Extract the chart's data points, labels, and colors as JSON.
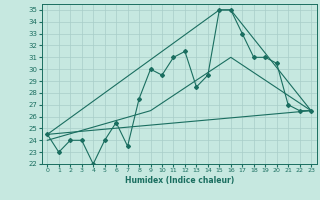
{
  "xlabel": "Humidex (Indice chaleur)",
  "background_color": "#c6e8e0",
  "grid_color": "#a8cec8",
  "line_color": "#1a6e60",
  "xlim": [
    -0.5,
    23.5
  ],
  "ylim": [
    22,
    35.5
  ],
  "xticks": [
    0,
    1,
    2,
    3,
    4,
    5,
    6,
    7,
    8,
    9,
    10,
    11,
    12,
    13,
    14,
    15,
    16,
    17,
    18,
    19,
    20,
    21,
    22,
    23
  ],
  "yticks": [
    22,
    23,
    24,
    25,
    26,
    27,
    28,
    29,
    30,
    31,
    32,
    33,
    34,
    35
  ],
  "series1": {
    "x": [
      0,
      1,
      2,
      3,
      4,
      5,
      6,
      7,
      8,
      9,
      10,
      11,
      12,
      13,
      14,
      15,
      16,
      17,
      18,
      19,
      20,
      21,
      22,
      23
    ],
    "y": [
      24.5,
      23.0,
      24.0,
      24.0,
      22.0,
      24.0,
      25.5,
      23.5,
      27.5,
      30.0,
      29.5,
      31.0,
      31.5,
      28.5,
      29.5,
      35.0,
      35.0,
      33.0,
      31.0,
      31.0,
      30.5,
      27.0,
      26.5,
      26.5
    ]
  },
  "series2": {
    "x": [
      0,
      23
    ],
    "y": [
      24.5,
      26.5
    ]
  },
  "series3": {
    "x": [
      0,
      15,
      16,
      23
    ],
    "y": [
      24.5,
      35.0,
      35.0,
      26.5
    ]
  },
  "series4": {
    "x": [
      0,
      9,
      16,
      23
    ],
    "y": [
      24.0,
      26.5,
      31.0,
      26.5
    ]
  }
}
